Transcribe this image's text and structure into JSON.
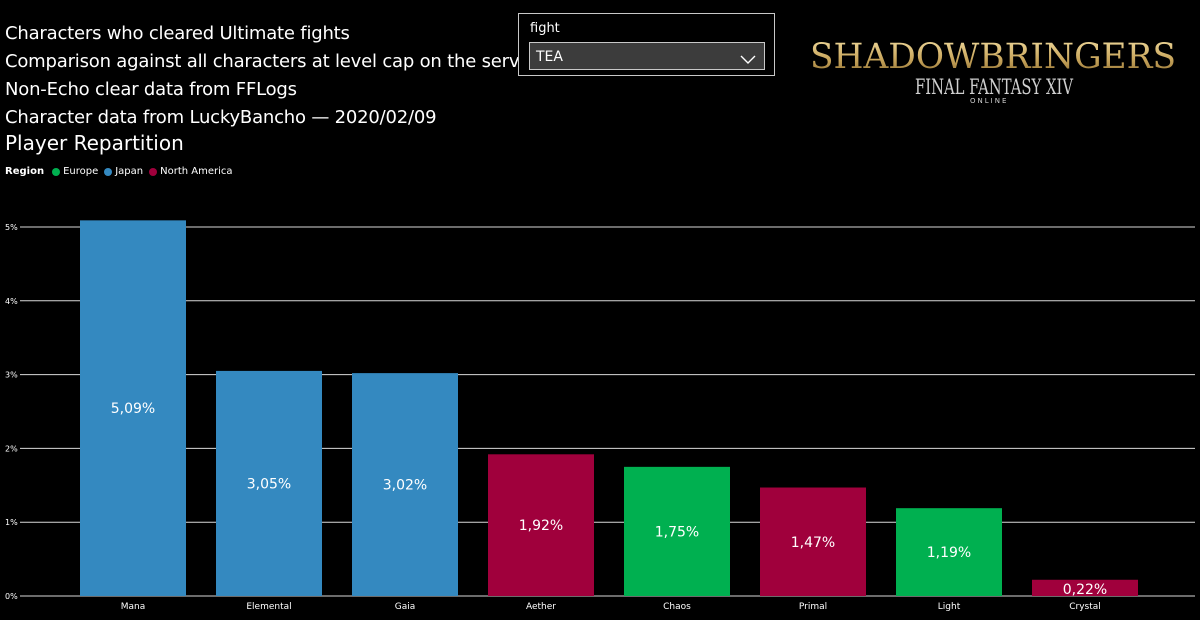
{
  "header": {
    "lines": [
      "Characters who cleared Ultimate fights",
      "Comparison against all characters at level cap on the server",
      "Non-Echo clear data from FFLogs",
      "Character data from LuckyBancho — 2020/02/09"
    ]
  },
  "slicer": {
    "label": "fight",
    "selected": "TEA"
  },
  "logo": {
    "main": "SHADOWBRINGERS",
    "sub": "FINAL FANTASY XIV",
    "online": "ONLINE"
  },
  "legend": {
    "title": "Region",
    "items": [
      {
        "label": "Europe",
        "color": "#00b050"
      },
      {
        "label": "Japan",
        "color": "#3489c0"
      },
      {
        "label": "North America",
        "color": "#a0003c"
      }
    ]
  },
  "chart_data": {
    "type": "bar",
    "title": "Player Repartition",
    "categories": [
      "Mana",
      "Elemental",
      "Gaia",
      "Aether",
      "Chaos",
      "Primal",
      "Light",
      "Crystal"
    ],
    "values": [
      5.09,
      3.05,
      3.02,
      1.92,
      1.75,
      1.47,
      1.19,
      0.22
    ],
    "data_labels": [
      "5,09%",
      "3,05%",
      "3,02%",
      "1,92%",
      "1,75%",
      "1,47%",
      "1,19%",
      "0,22%"
    ],
    "regions": [
      "Japan",
      "Japan",
      "Japan",
      "North America",
      "Europe",
      "North America",
      "Europe",
      "North America"
    ],
    "ylim": [
      0,
      5
    ],
    "yticks": [
      0,
      1,
      2,
      3,
      4,
      5
    ],
    "ytick_labels": [
      "0%",
      "1%",
      "2%",
      "3%",
      "4%",
      "5%"
    ],
    "grid": true,
    "legend_position": "top-left"
  }
}
